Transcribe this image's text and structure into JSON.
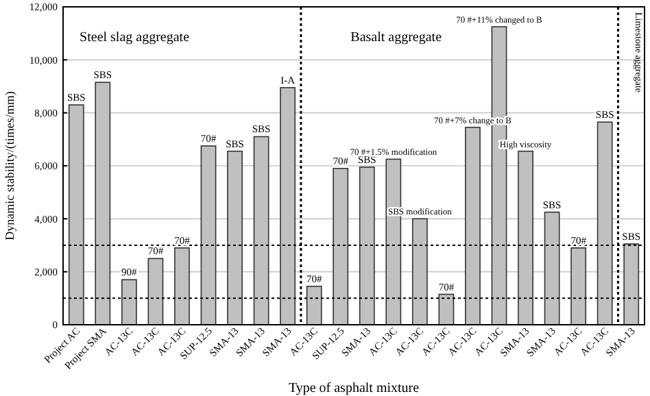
{
  "chart_data": {
    "type": "bar",
    "xlabel": "Type of asphalt mixture",
    "ylabel": "Dynamic stability/(times/mm)",
    "categories": [
      "Project AC",
      "Project SMA",
      "AC-13C",
      "AC-13C",
      "AC-13C",
      "SUP-12.5",
      "SMA-13",
      "SMA-13",
      "SMA-13",
      "AC-13C",
      "SUP-12.5",
      "SMA-13",
      "AC-13C",
      "AC-13C",
      "AC-13C",
      "AC-13C",
      "AC-13C",
      "SMA-13",
      "SMA-13",
      "AC-13C",
      "AC-13C",
      "SMA-13"
    ],
    "values": [
      8300,
      9150,
      1700,
      2500,
      2900,
      6750,
      6550,
      7100,
      8950,
      1450,
      5900,
      5950,
      6250,
      4000,
      1150,
      7450,
      11250,
      6550,
      4250,
      2900,
      7650,
      3050
    ],
    "color": "#c0c0c0",
    "ylim": [
      0,
      12000
    ],
    "yticks": [
      {
        "value": 0,
        "label": "0"
      },
      {
        "value": 2000,
        "label": "2,000"
      },
      {
        "value": 4000,
        "label": "4,000"
      },
      {
        "value": 6000,
        "label": "6,000"
      },
      {
        "value": 8000,
        "label": "8,000"
      },
      {
        "value": 10000,
        "label": "10,000"
      },
      {
        "value": 12000,
        "label": "12,000"
      }
    ],
    "grid": "y",
    "ref_lines": [
      {
        "axis": "y",
        "value": 1000,
        "line_style": "dotted",
        "color": "#000000"
      },
      {
        "axis": "y",
        "value": 3000,
        "line_style": "dotted",
        "color": "#000000"
      }
    ],
    "annotations": [
      "Steel slag aggregate",
      "Basalt aggregate",
      "Limestone aggregate",
      "SBS",
      "SBS",
      "90#",
      "70#",
      "70#",
      "70#",
      "SBS",
      "SBS",
      "I-A",
      "70#",
      "70#",
      "SBS",
      "70 #+1.5% modification",
      "SBS modification",
      "70#",
      "70 #+7% change to B",
      "70 #+11% changed to B",
      "High viscosity",
      "SBS",
      "70#",
      "SBS",
      "SBS"
    ]
  }
}
